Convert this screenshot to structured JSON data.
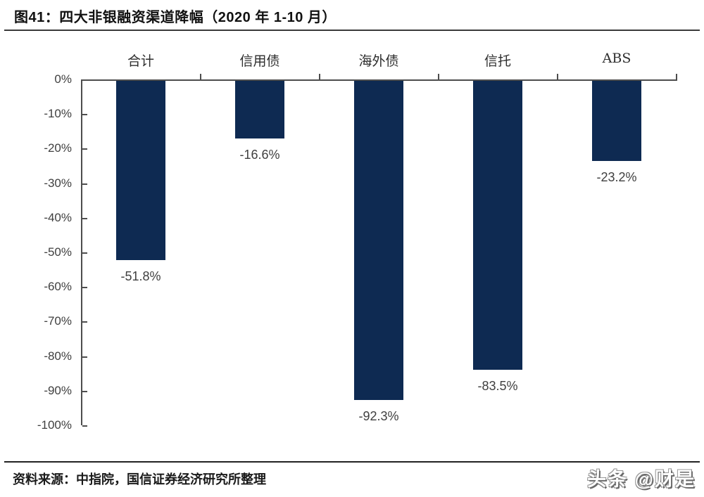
{
  "header": {
    "title": "图41：四大非银融资渠道降幅（2020 年 1-10 月）"
  },
  "footer": {
    "source": "资料来源：中指院，国信证券经济研究所整理",
    "watermark": "头条 @财是"
  },
  "chart_data": {
    "type": "bar",
    "title": "四大非银融资渠道降幅（2020 年 1-10 月）",
    "categories": [
      "合计",
      "信用债",
      "海外债",
      "信托",
      "ABS"
    ],
    "values": [
      -51.8,
      -16.6,
      -92.3,
      -83.5,
      -23.2
    ],
    "value_labels": [
      "-51.8%",
      "-16.6%",
      "-92.3%",
      "-83.5%",
      "-23.2%"
    ],
    "xlabel": "",
    "ylabel": "",
    "ylim": [
      -100,
      0
    ],
    "y_ticks": [
      "0%",
      "-10%",
      "-20%",
      "-30%",
      "-40%",
      "-50%",
      "-60%",
      "-70%",
      "-80%",
      "-90%",
      "-100%"
    ],
    "bar_color": "#0e2a52",
    "axis_color": "#4d4d4d",
    "grid": false,
    "legend": "none",
    "category_label_position": "top",
    "value_label_position": "below-bar"
  }
}
